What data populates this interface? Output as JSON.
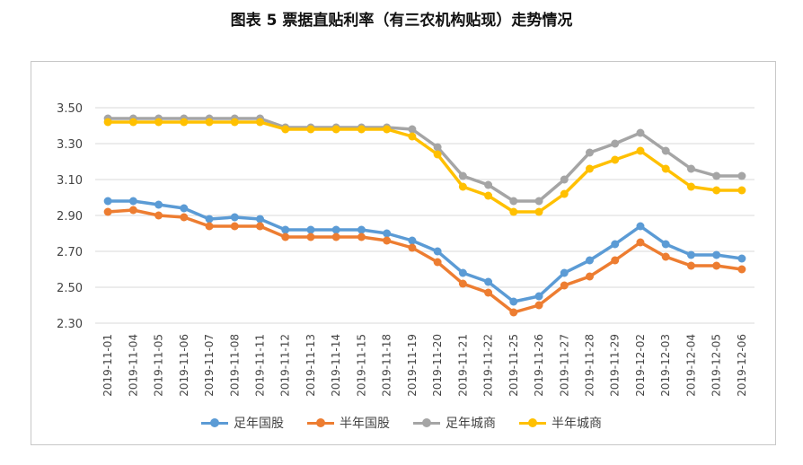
{
  "title": "图表 5  票据直贴利率（有三农机构贴现）走势情况",
  "chart_data": {
    "type": "line",
    "categories": [
      "2019-11-01",
      "2019-11-04",
      "2019-11-05",
      "2019-11-06",
      "2019-11-07",
      "2019-11-08",
      "2019-11-11",
      "2019-11-12",
      "2019-11-13",
      "2019-11-14",
      "2019-11-15",
      "2019-11-18",
      "2019-11-19",
      "2019-11-20",
      "2019-11-21",
      "2019-11-22",
      "2019-11-25",
      "2019-11-26",
      "2019-11-27",
      "2019-11-28",
      "2019-11-29",
      "2019-12-02",
      "2019-12-03",
      "2019-12-04",
      "2019-12-05",
      "2019-12-06"
    ],
    "ylim": [
      2.3,
      3.5
    ],
    "yticks": [
      "3.50",
      "3.30",
      "3.10",
      "2.90",
      "2.70",
      "2.50",
      "2.30"
    ],
    "grid": true,
    "legend_position": "bottom",
    "series": [
      {
        "name": "足年国股",
        "color": "#5b9bd5",
        "values": [
          2.98,
          2.98,
          2.96,
          2.94,
          2.88,
          2.89,
          2.88,
          2.82,
          2.82,
          2.82,
          2.82,
          2.8,
          2.76,
          2.7,
          2.58,
          2.53,
          2.42,
          2.45,
          2.58,
          2.65,
          2.74,
          2.84,
          2.74,
          2.68,
          2.68,
          2.66
        ]
      },
      {
        "name": "半年国股",
        "color": "#ed7d31",
        "values": [
          2.92,
          2.93,
          2.9,
          2.89,
          2.84,
          2.84,
          2.84,
          2.78,
          2.78,
          2.78,
          2.78,
          2.76,
          2.72,
          2.64,
          2.52,
          2.47,
          2.36,
          2.4,
          2.51,
          2.56,
          2.65,
          2.75,
          2.67,
          2.62,
          2.62,
          2.6
        ]
      },
      {
        "name": "足年城商",
        "color": "#a5a5a5",
        "values": [
          3.44,
          3.44,
          3.44,
          3.44,
          3.44,
          3.44,
          3.44,
          3.39,
          3.39,
          3.39,
          3.39,
          3.39,
          3.38,
          3.28,
          3.12,
          3.07,
          2.98,
          2.98,
          3.1,
          3.25,
          3.3,
          3.36,
          3.26,
          3.16,
          3.12,
          3.12
        ]
      },
      {
        "name": "半年城商",
        "color": "#ffc000",
        "values": [
          3.42,
          3.42,
          3.42,
          3.42,
          3.42,
          3.42,
          3.42,
          3.38,
          3.38,
          3.38,
          3.38,
          3.38,
          3.34,
          3.24,
          3.06,
          3.01,
          2.92,
          2.92,
          3.02,
          3.16,
          3.21,
          3.26,
          3.16,
          3.06,
          3.04,
          3.04
        ]
      }
    ]
  }
}
